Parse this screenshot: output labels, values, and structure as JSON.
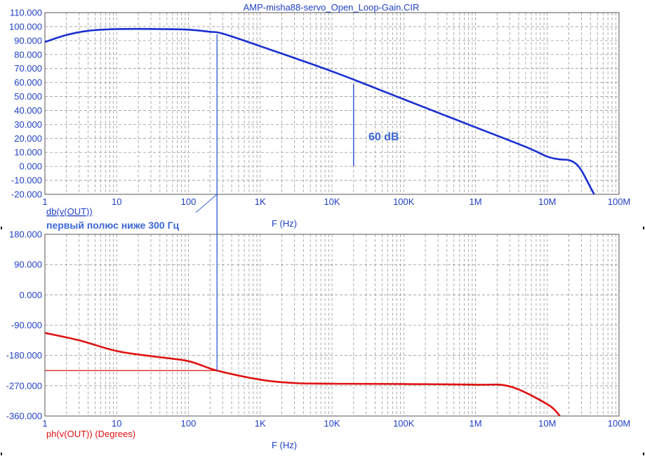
{
  "window": {
    "title": "AMP-misha88-servo_Open_Loop-Gain.CIR"
  },
  "colors": {
    "gain": "#1a2fd0",
    "phase": "#e01010",
    "annotation": "#3a66d6",
    "text": "#1f3fc4",
    "grid": "#9a9a9a"
  },
  "chart_data": [
    {
      "type": "line",
      "x_scale": "log",
      "xlim": [
        1,
        100000000
      ],
      "ylim": [
        -20,
        110
      ],
      "xlabel": "F (Hz)",
      "ylabel": "",
      "series_label": "db(v(OUT))",
      "x_ticks": [
        {
          "v": 1,
          "label": "1"
        },
        {
          "v": 10,
          "label": "10"
        },
        {
          "v": 100,
          "label": "100"
        },
        {
          "v": 1000,
          "label": "1K"
        },
        {
          "v": 10000,
          "label": "10K"
        },
        {
          "v": 100000,
          "label": "100K"
        },
        {
          "v": 1000000,
          "label": "1M"
        },
        {
          "v": 10000000,
          "label": "10M"
        },
        {
          "v": 100000000,
          "label": "100M"
        }
      ],
      "y_ticks": [
        {
          "v": 110,
          "label": "110.000"
        },
        {
          "v": 100,
          "label": "100.000"
        },
        {
          "v": 90,
          "label": "90.000"
        },
        {
          "v": 80,
          "label": "80.000"
        },
        {
          "v": 70,
          "label": "70.000"
        },
        {
          "v": 60,
          "label": "60.000"
        },
        {
          "v": 50,
          "label": "50.000"
        },
        {
          "v": 40,
          "label": "40.000"
        },
        {
          "v": 30,
          "label": "30.000"
        },
        {
          "v": 20,
          "label": "20.000"
        },
        {
          "v": 10,
          "label": "10.000"
        },
        {
          "v": 0,
          "label": "0.000"
        },
        {
          "v": -10,
          "label": "-10.000"
        },
        {
          "v": -20,
          "label": "-20.000"
        }
      ],
      "series": [
        {
          "x": [
            1,
            2,
            4,
            10,
            30,
            100,
            200,
            300,
            1000,
            10000,
            100000,
            1000000,
            5000000,
            10000000,
            15000000,
            20000000,
            25000000,
            30000000,
            40000000,
            45000000
          ],
          "y": [
            89,
            94,
            97,
            98.2,
            98.3,
            97.8,
            96.3,
            95,
            86,
            68,
            48,
            28,
            14,
            7,
            5,
            4.5,
            2,
            -3,
            -15,
            -20
          ]
        }
      ],
      "annotations": [
        {
          "text": "60 dB",
          "x": 20000,
          "y_from": 0,
          "y_to": 59
        },
        {
          "text": "первый полюс ниже 300 Гц",
          "x": 250
        }
      ]
    },
    {
      "type": "line",
      "x_scale": "log",
      "xlim": [
        1,
        100000000
      ],
      "ylim": [
        -360,
        180
      ],
      "xlabel": "F (Hz)",
      "ylabel": "",
      "series_label": "ph(v(OUT)) (Degrees)",
      "x_ticks": [
        {
          "v": 1,
          "label": "1"
        },
        {
          "v": 10,
          "label": "10"
        },
        {
          "v": 100,
          "label": "100"
        },
        {
          "v": 1000,
          "label": "1K"
        },
        {
          "v": 10000,
          "label": "10K"
        },
        {
          "v": 100000,
          "label": "100K"
        },
        {
          "v": 1000000,
          "label": "1M"
        },
        {
          "v": 10000000,
          "label": "10M"
        },
        {
          "v": 100000000,
          "label": "100M"
        }
      ],
      "y_ticks": [
        {
          "v": 180,
          "label": "180.000"
        },
        {
          "v": 90,
          "label": "90.000"
        },
        {
          "v": 0,
          "label": "0.000"
        },
        {
          "v": -90,
          "label": "-90.000"
        },
        {
          "v": -180,
          "label": "-180.000"
        },
        {
          "v": -270,
          "label": "-270.000"
        },
        {
          "v": -360,
          "label": "-360.000"
        }
      ],
      "series": [
        {
          "x": [
            1,
            3,
            10,
            30,
            100,
            250,
            1000,
            3000,
            10000,
            100000,
            1000000,
            3000000,
            10000000,
            15000000
          ],
          "y": [
            -113,
            -135,
            -167,
            -182,
            -197,
            -225,
            -252,
            -262,
            -264,
            -265,
            -267,
            -272,
            -325,
            -360
          ]
        }
      ],
      "reference_line": {
        "y": -225,
        "x_from": 1,
        "x_to": 250
      }
    }
  ]
}
